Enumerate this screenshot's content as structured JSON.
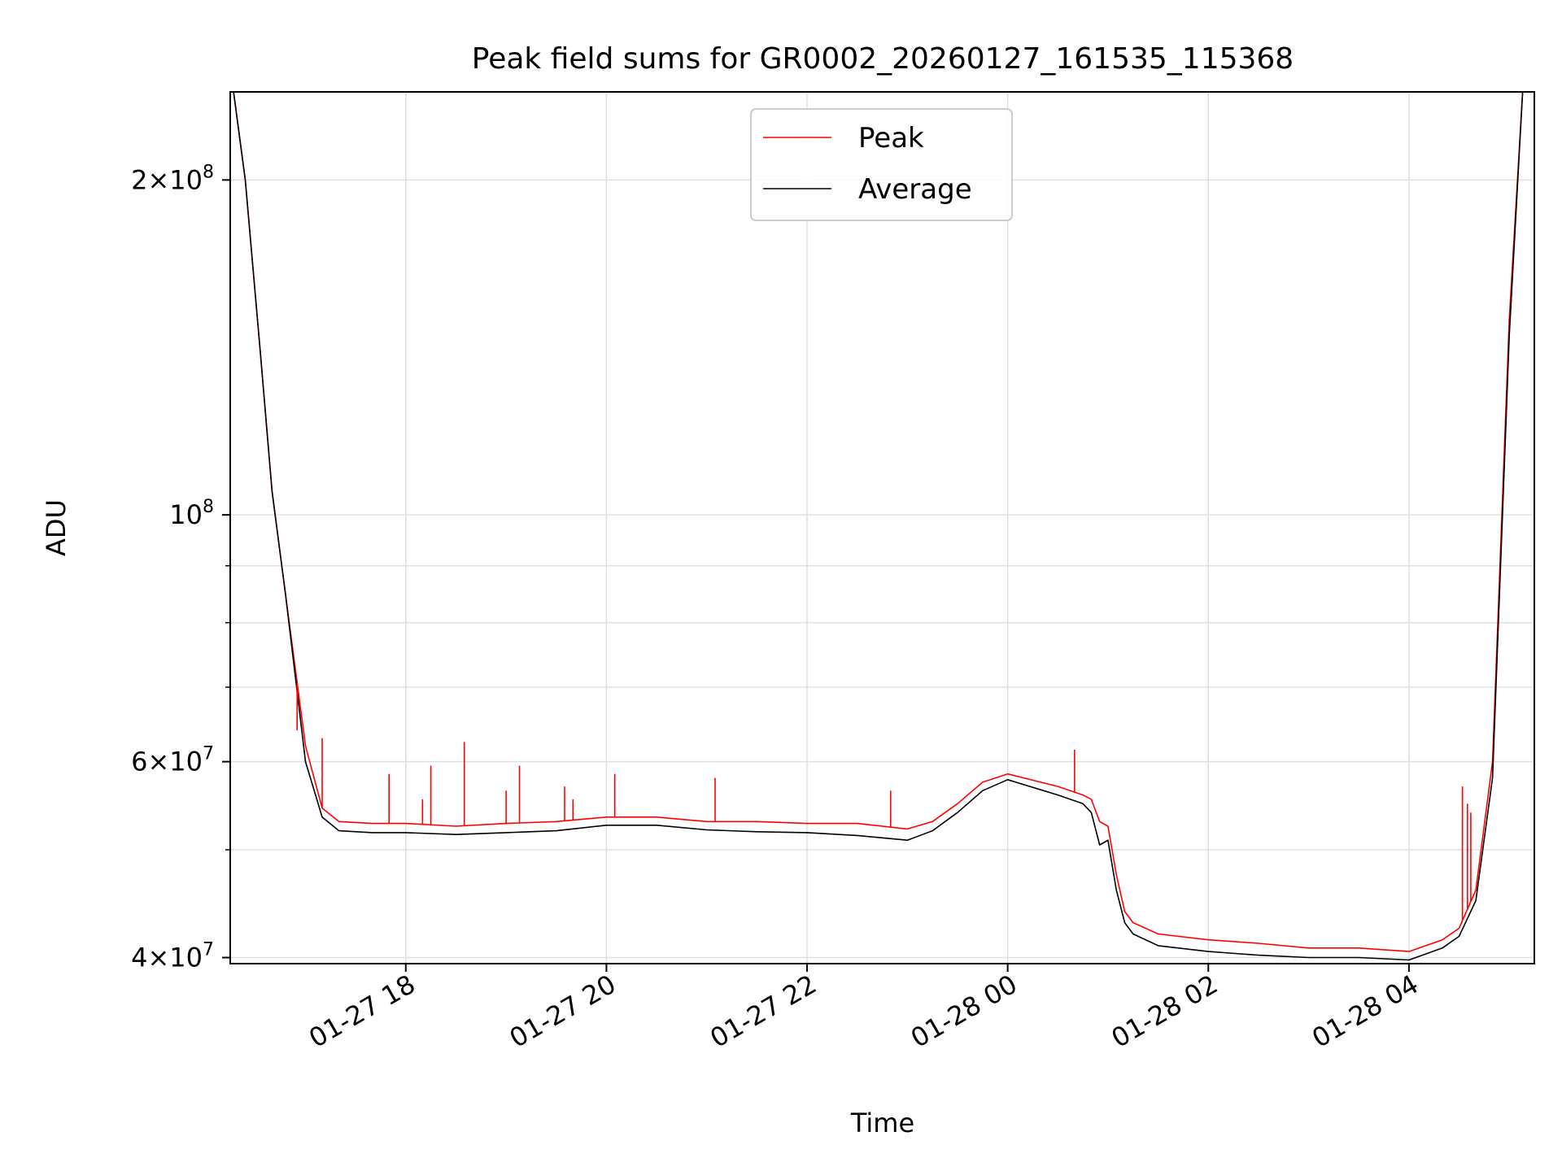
{
  "colors": {
    "background": "#ffffff",
    "peak": "#ff0000",
    "average": "#000000",
    "grid": "#e0e0e0",
    "axis": "#000000",
    "legend_border": "#cccccc"
  },
  "chart_data": {
    "type": "line",
    "title": "Peak field sums for GR0002_20260127_161535_115368",
    "xlabel": "Time",
    "ylabel": "ADU",
    "y_scale": "log",
    "x_type": "datetime",
    "xlim": [
      "2026-01-27 16:15",
      "2026-01-28 05:15"
    ],
    "ylim": [
      39500000,
      240000000
    ],
    "grid": true,
    "legend_position": "top-center",
    "x_ticks": [
      {
        "value": "2026-01-27 18:00",
        "label": "01-27 18"
      },
      {
        "value": "2026-01-27 20:00",
        "label": "01-27 20"
      },
      {
        "value": "2026-01-27 22:00",
        "label": "01-27 22"
      },
      {
        "value": "2026-01-28 00:00",
        "label": "01-28 00"
      },
      {
        "value": "2026-01-28 02:00",
        "label": "01-28 02"
      },
      {
        "value": "2026-01-28 04:00",
        "label": "01-28 04"
      }
    ],
    "y_ticks_major": [
      {
        "value": 40000000,
        "mantissa": "4",
        "exponent": "7"
      },
      {
        "value": 60000000,
        "mantissa": "6",
        "exponent": "7"
      },
      {
        "value": 100000000,
        "mantissa": "",
        "exponent": "8"
      },
      {
        "value": 200000000,
        "mantissa": "2",
        "exponent": "8"
      }
    ],
    "y_ticks_minor": [
      50000000,
      70000000,
      80000000,
      90000000
    ],
    "series": [
      {
        "name": "Peak",
        "color": "#ff0000",
        "x": [
          "2026-01-27 16:17",
          "2026-01-27 16:24",
          "2026-01-27 16:33",
          "2026-01-27 16:40",
          "2026-01-27 16:48",
          "2026-01-27 17:00",
          "2026-01-27 17:10",
          "2026-01-27 17:20",
          "2026-01-27 17:40",
          "2026-01-27 18:00",
          "2026-01-27 18:30",
          "2026-01-27 19:00",
          "2026-01-27 19:30",
          "2026-01-27 20:00",
          "2026-01-27 20:30",
          "2026-01-27 21:00",
          "2026-01-27 21:30",
          "2026-01-27 22:00",
          "2026-01-27 22:30",
          "2026-01-27 23:00",
          "2026-01-27 23:15",
          "2026-01-27 23:30",
          "2026-01-27 23:45",
          "2026-01-28 00:00",
          "2026-01-28 00:30",
          "2026-01-28 00:45",
          "2026-01-28 00:50",
          "2026-01-28 00:55",
          "2026-01-28 01:00",
          "2026-01-28 01:05",
          "2026-01-28 01:10",
          "2026-01-28 01:15",
          "2026-01-28 01:30",
          "2026-01-28 02:00",
          "2026-01-28 02:30",
          "2026-01-28 03:00",
          "2026-01-28 03:30",
          "2026-01-28 04:00",
          "2026-01-28 04:20",
          "2026-01-28 04:30",
          "2026-01-28 04:40",
          "2026-01-28 04:50",
          "2026-01-28 05:00",
          "2026-01-28 05:08"
        ],
        "values": [
          240000000,
          200000000,
          140000000,
          105000000,
          85000000,
          62000000,
          54500000,
          53000000,
          52800000,
          52800000,
          52500000,
          52800000,
          53000000,
          53500000,
          53500000,
          53000000,
          53000000,
          52800000,
          52800000,
          52200000,
          53000000,
          55000000,
          57500000,
          58500000,
          57000000,
          56000000,
          55500000,
          53000000,
          52500000,
          47500000,
          44000000,
          43000000,
          42000000,
          41500000,
          41200000,
          40800000,
          40800000,
          40500000,
          41500000,
          42500000,
          46000000,
          60000000,
          150000000,
          240000000
        ]
      },
      {
        "name": "Average",
        "color": "#000000",
        "x": [
          "2026-01-27 16:17",
          "2026-01-27 16:24",
          "2026-01-27 16:33",
          "2026-01-27 16:40",
          "2026-01-27 16:48",
          "2026-01-27 17:00",
          "2026-01-27 17:10",
          "2026-01-27 17:20",
          "2026-01-27 17:40",
          "2026-01-27 18:00",
          "2026-01-27 18:30",
          "2026-01-27 19:00",
          "2026-01-27 19:30",
          "2026-01-27 20:00",
          "2026-01-27 20:30",
          "2026-01-27 21:00",
          "2026-01-27 21:30",
          "2026-01-27 22:00",
          "2026-01-27 22:30",
          "2026-01-27 23:00",
          "2026-01-27 23:15",
          "2026-01-27 23:30",
          "2026-01-27 23:45",
          "2026-01-28 00:00",
          "2026-01-28 00:30",
          "2026-01-28 00:45",
          "2026-01-28 00:50",
          "2026-01-28 00:55",
          "2026-01-28 01:00",
          "2026-01-28 01:05",
          "2026-01-28 01:10",
          "2026-01-28 01:15",
          "2026-01-28 01:30",
          "2026-01-28 02:00",
          "2026-01-28 02:30",
          "2026-01-28 03:00",
          "2026-01-28 03:30",
          "2026-01-28 04:00",
          "2026-01-28 04:20",
          "2026-01-28 04:30",
          "2026-01-28 04:40",
          "2026-01-28 04:50",
          "2026-01-28 05:00",
          "2026-01-28 05:08"
        ],
        "values": [
          240000000,
          200000000,
          140000000,
          105000000,
          85000000,
          60000000,
          53500000,
          52000000,
          51800000,
          51800000,
          51600000,
          51800000,
          52000000,
          52600000,
          52600000,
          52100000,
          51900000,
          51800000,
          51500000,
          51000000,
          52000000,
          54000000,
          56500000,
          57800000,
          56000000,
          55000000,
          54000000,
          50500000,
          51000000,
          46000000,
          43000000,
          42000000,
          41000000,
          40500000,
          40200000,
          40000000,
          40000000,
          39800000,
          40800000,
          41800000,
          45000000,
          58000000,
          145000000,
          240000000
        ]
      }
    ],
    "spikes": {
      "series": "Peak",
      "x": [
        "2026-01-27 16:55",
        "2026-01-27 17:10",
        "2026-01-27 17:50",
        "2026-01-27 18:10",
        "2026-01-27 18:15",
        "2026-01-27 18:35",
        "2026-01-27 19:00",
        "2026-01-27 19:08",
        "2026-01-27 19:35",
        "2026-01-27 19:40",
        "2026-01-27 20:05",
        "2026-01-27 21:05",
        "2026-01-27 22:50",
        "2026-01-28 00:40",
        "2026-01-28 04:32",
        "2026-01-28 04:35",
        "2026-01-28 04:37"
      ],
      "values": [
        64000000,
        63000000,
        58500000,
        55500000,
        59500000,
        62500000,
        56500000,
        59500000,
        57000000,
        55500000,
        58500000,
        58000000,
        56500000,
        61500000,
        57000000,
        55000000,
        54000000
      ]
    }
  }
}
